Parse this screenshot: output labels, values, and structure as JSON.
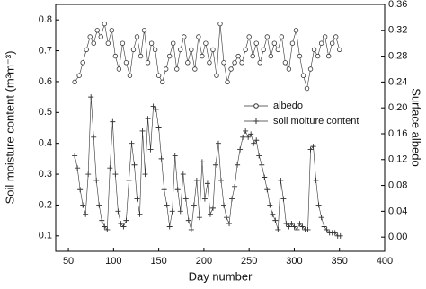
{
  "chart_data": {
    "type": "line",
    "x_label": "Day number",
    "y_label": "Soil moisture content (m³m⁻³)",
    "y2_label": "Surface albedo",
    "xlim": [
      36,
      400
    ],
    "xticks": [
      50,
      100,
      150,
      200,
      250,
      300,
      350,
      400
    ],
    "ylim": [
      0.05,
      0.85
    ],
    "yticks": [
      0.1,
      0.2,
      0.3,
      0.4,
      0.5,
      0.6,
      0.7,
      0.8
    ],
    "y2lim": [
      -0.022,
      0.36
    ],
    "y2ticks": [
      {
        "value": 0,
        "label": "0.00"
      },
      0.04,
      0.08,
      0.12,
      0.16,
      {
        "value": 0.2,
        "label": "0.20"
      },
      0.24,
      0.28,
      0.32,
      0.36
    ],
    "series": [
      {
        "name": "albedo",
        "axis": "y2",
        "marker": "circle",
        "color": "#333333",
        "x": [
          57,
          62,
          66,
          70,
          74,
          78,
          82,
          86,
          90,
          94,
          98,
          102,
          106,
          110,
          114,
          118,
          122,
          126,
          130,
          134,
          138,
          142,
          146,
          150,
          154,
          158,
          162,
          166,
          170,
          174,
          178,
          182,
          186,
          190,
          194,
          198,
          202,
          206,
          210,
          214,
          218,
          222,
          226,
          230,
          234,
          238,
          242,
          246,
          250,
          254,
          258,
          262,
          266,
          270,
          274,
          278,
          282,
          286,
          290,
          294,
          298,
          302,
          306,
          310,
          314,
          318,
          322,
          326,
          330,
          334,
          338,
          342,
          346,
          350
        ],
        "values": [
          0.24,
          0.25,
          0.27,
          0.29,
          0.31,
          0.3,
          0.32,
          0.31,
          0.33,
          0.3,
          0.32,
          0.28,
          0.26,
          0.3,
          0.27,
          0.25,
          0.29,
          0.31,
          0.28,
          0.32,
          0.27,
          0.3,
          0.29,
          0.25,
          0.24,
          0.26,
          0.28,
          0.3,
          0.26,
          0.29,
          0.31,
          0.27,
          0.29,
          0.26,
          0.31,
          0.28,
          0.3,
          0.27,
          0.29,
          0.25,
          0.33,
          0.27,
          0.24,
          0.26,
          0.27,
          0.28,
          0.27,
          0.29,
          0.31,
          0.28,
          0.3,
          0.27,
          0.29,
          0.31,
          0.28,
          0.3,
          0.29,
          0.31,
          0.27,
          0.26,
          0.3,
          0.32,
          0.28,
          0.25,
          0.23,
          0.26,
          0.29,
          0.28,
          0.3,
          0.31,
          0.28,
          0.3,
          0.31,
          0.29
        ]
      },
      {
        "name": "soil moiture content",
        "axis": "y",
        "marker": "plus",
        "color": "#333333",
        "x": [
          57,
          60,
          63,
          66,
          69,
          72,
          75,
          78,
          81,
          84,
          87,
          90,
          93,
          96,
          99,
          102,
          105,
          108,
          111,
          114,
          117,
          120,
          123,
          126,
          129,
          132,
          135,
          138,
          141,
          144,
          147,
          150,
          153,
          156,
          159,
          162,
          165,
          168,
          171,
          174,
          177,
          180,
          183,
          186,
          189,
          192,
          195,
          198,
          201,
          204,
          207,
          210,
          213,
          216,
          219,
          222,
          225,
          228,
          231,
          234,
          237,
          240,
          243,
          246,
          249,
          252,
          255,
          258,
          261,
          264,
          267,
          270,
          273,
          276,
          279,
          282,
          285,
          288,
          291,
          294,
          297,
          300,
          303,
          306,
          309,
          312,
          315,
          318,
          321,
          324,
          327,
          330,
          333,
          336,
          339,
          342,
          345,
          348,
          351
        ],
        "values": [
          0.36,
          0.32,
          0.25,
          0.2,
          0.17,
          0.3,
          0.55,
          0.42,
          0.28,
          0.2,
          0.15,
          0.13,
          0.12,
          0.32,
          0.47,
          0.3,
          0.18,
          0.14,
          0.13,
          0.15,
          0.28,
          0.4,
          0.33,
          0.22,
          0.17,
          0.44,
          0.3,
          0.48,
          0.38,
          0.52,
          0.51,
          0.45,
          0.35,
          0.25,
          0.2,
          0.13,
          0.18,
          0.36,
          0.25,
          0.18,
          0.3,
          0.22,
          0.15,
          0.12,
          0.2,
          0.28,
          0.16,
          0.34,
          0.22,
          0.27,
          0.17,
          0.19,
          0.33,
          0.4,
          0.28,
          0.2,
          0.16,
          0.14,
          0.22,
          0.26,
          0.33,
          0.38,
          0.42,
          0.44,
          0.42,
          0.43,
          0.4,
          0.41,
          0.36,
          0.33,
          0.29,
          0.25,
          0.2,
          0.17,
          0.15,
          0.12,
          0.28,
          0.22,
          0.14,
          0.13,
          0.14,
          0.13,
          0.12,
          0.14,
          0.13,
          0.12,
          0.12,
          0.38,
          0.39,
          0.28,
          0.2,
          0.16,
          0.13,
          0.12,
          0.11,
          0.11,
          0.11,
          0.1,
          0.1
        ]
      }
    ]
  }
}
